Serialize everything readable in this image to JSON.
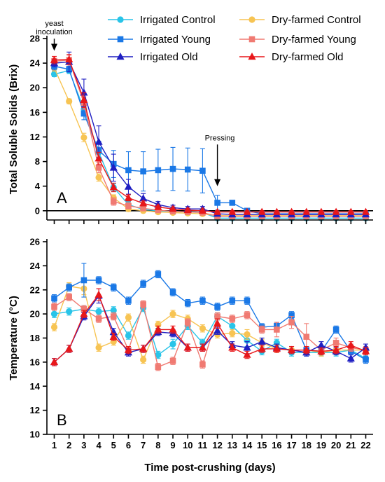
{
  "chart_data": {
    "type": "line",
    "x": [
      1,
      2,
      3,
      4,
      5,
      6,
      7,
      8,
      9,
      10,
      11,
      12,
      13,
      14,
      15,
      16,
      17,
      18,
      19,
      20,
      21,
      22
    ],
    "xlabel": "Time post-crushing (days)",
    "legend_position": "top-right",
    "series_style": [
      {
        "name": "Irrigated Control",
        "color": "#29c4e8",
        "marker": "circle"
      },
      {
        "name": "Dry-farmed Control",
        "color": "#f7c453",
        "marker": "circle"
      },
      {
        "name": "Irrigated Young",
        "color": "#1a78e6",
        "marker": "square"
      },
      {
        "name": "Dry-farmed Young",
        "color": "#f07a72",
        "marker": "square"
      },
      {
        "name": "Irrigated Old",
        "color": "#1f1fc2",
        "marker": "triangle"
      },
      {
        "name": "Dry-farmed Old",
        "color": "#e8171a",
        "marker": "triangle"
      }
    ],
    "panels": [
      {
        "letter": "A",
        "ylabel": "Total Soluble Solids (Brix)",
        "ylim": [
          -1.5,
          28
        ],
        "yticks": [
          0,
          4,
          8,
          12,
          16,
          20,
          24,
          28
        ],
        "annotations": [
          {
            "text_lines": [
              "yeast",
              "inoculation"
            ],
            "x": 1,
            "y_from": 28.2,
            "y_to": 26.0
          },
          {
            "text_lines": [
              "Pressing"
            ],
            "x": 12,
            "y_from": 11.0,
            "y_to": 4.0
          }
        ],
        "series": [
          {
            "name": "Irrigated Control",
            "values": [
              22.2,
              22.8,
              16.5,
              9.5,
              3.8,
              1.0,
              0.2,
              0.0,
              -0.1,
              -0.2,
              -0.3,
              -1.2,
              -1.2,
              -1.2,
              -1.2,
              -1.2,
              -1.2,
              -1.2,
              -1.2,
              -1.2,
              -1.2,
              -1.2
            ],
            "errors": [
              0.4,
              0.5,
              0.8,
              0.8,
              0.6,
              0.5,
              0.3,
              0.3,
              0.3,
              0.3,
              0.3,
              0.2,
              0.2,
              0.2,
              0.2,
              0.2,
              0.2,
              0.2,
              0.2,
              0.2,
              0.2,
              0.2
            ]
          },
          {
            "name": "Dry-farmed Control",
            "values": [
              23.2,
              17.8,
              11.9,
              5.4,
              2.1,
              0.3,
              0.0,
              -0.2,
              -0.3,
              -0.4,
              -0.5,
              -0.8,
              -0.8,
              -0.8,
              -0.8,
              -0.8,
              -0.8,
              -0.8,
              -0.8,
              -0.8,
              -0.8,
              -0.8
            ],
            "errors": [
              0.5,
              0.4,
              0.7,
              0.6,
              0.5,
              0.4,
              0.3,
              0.3,
              0.3,
              0.3,
              0.3,
              0.2,
              0.2,
              0.2,
              0.2,
              0.2,
              0.2,
              0.2,
              0.2,
              0.2,
              0.2,
              0.2
            ]
          },
          {
            "name": "Irrigated Young",
            "values": [
              23.5,
              23.0,
              15.8,
              9.8,
              7.6,
              6.6,
              6.4,
              6.6,
              6.8,
              6.7,
              6.5,
              1.3,
              1.3,
              0.0,
              -0.5,
              -0.5,
              -0.5,
              -0.5,
              -0.5,
              -0.5,
              -0.5,
              -0.5
            ],
            "errors": [
              0.6,
              0.5,
              1.0,
              1.5,
              2.2,
              3.0,
              3.2,
              3.4,
              3.5,
              3.5,
              3.6,
              1.2,
              0.3,
              0.3,
              0.2,
              0.2,
              0.2,
              0.2,
              0.2,
              0.2,
              0.2,
              0.2
            ]
          },
          {
            "name": "Dry-farmed Young",
            "values": [
              24.3,
              24.5,
              17.5,
              7.0,
              1.5,
              0.8,
              0.4,
              0.1,
              -0.1,
              -0.2,
              -0.3,
              -0.9,
              -0.9,
              -0.9,
              -0.9,
              -0.9,
              -0.9,
              -0.9,
              -0.9,
              -0.9,
              -0.9,
              -0.9
            ],
            "errors": [
              0.5,
              0.8,
              1.0,
              0.8,
              0.6,
              0.5,
              0.4,
              0.3,
              0.3,
              0.3,
              0.3,
              0.2,
              0.2,
              0.2,
              0.2,
              0.2,
              0.2,
              0.2,
              0.2,
              0.2,
              0.2,
              0.2
            ]
          },
          {
            "name": "Irrigated Old",
            "values": [
              24.0,
              24.2,
              19.2,
              11.2,
              7.0,
              3.9,
              2.0,
              1.0,
              0.5,
              0.3,
              0.3,
              -0.5,
              -0.6,
              -0.6,
              -0.6,
              -0.6,
              -0.6,
              -0.6,
              -0.6,
              -0.6,
              -0.6,
              -0.6
            ],
            "errors": [
              0.6,
              1.6,
              2.2,
              2.6,
              2.2,
              1.2,
              0.8,
              0.5,
              0.4,
              0.4,
              0.4,
              0.2,
              0.2,
              0.2,
              0.2,
              0.2,
              0.2,
              0.2,
              0.2,
              0.2,
              0.2,
              0.2
            ]
          },
          {
            "name": "Dry-farmed Old",
            "values": [
              24.5,
              24.6,
              18.0,
              8.5,
              3.8,
              2.1,
              1.2,
              0.6,
              0.3,
              0.1,
              0.0,
              -0.2,
              -0.2,
              -0.2,
              -0.2,
              -0.2,
              -0.2,
              -0.2,
              -0.2,
              -0.2,
              -0.2,
              -0.2
            ],
            "errors": [
              0.6,
              0.8,
              1.2,
              1.0,
              0.7,
              0.5,
              0.4,
              0.3,
              0.3,
              0.3,
              0.3,
              0.2,
              0.2,
              0.2,
              0.2,
              0.2,
              0.2,
              0.2,
              0.2,
              0.2,
              0.2,
              0.2
            ]
          }
        ]
      },
      {
        "letter": "B",
        "ylabel": "Temperature (°C)",
        "ylim": [
          10,
          26
        ],
        "yticks": [
          10,
          12,
          14,
          16,
          18,
          20,
          22,
          24,
          26
        ],
        "series": [
          {
            "name": "Irrigated Control",
            "values": [
              20.0,
              20.2,
              20.4,
              20.2,
              20.3,
              18.2,
              20.5,
              16.6,
              17.5,
              19.0,
              17.6,
              19.8,
              19.0,
              17.8,
              16.9,
              17.6,
              16.8,
              16.8,
              16.8,
              16.8,
              17.0,
              16.3
            ],
            "errors": [
              0.3,
              0.3,
              0.3,
              0.3,
              0.3,
              0.3,
              0.3,
              0.3,
              0.4,
              0.3,
              0.3,
              0.3,
              0.6,
              0.5,
              0.3,
              0.3,
              0.3,
              0.3,
              0.3,
              0.3,
              0.3,
              0.3
            ]
          },
          {
            "name": "Dry-farmed Control",
            "values": [
              18.9,
              22.3,
              22.1,
              17.2,
              17.7,
              19.7,
              16.2,
              19.1,
              20.0,
              19.6,
              18.8,
              18.3,
              18.4,
              18.3,
              17.6,
              17.1,
              17.0,
              17.0,
              16.8,
              17.0,
              17.0,
              17.0
            ],
            "errors": [
              0.3,
              0.3,
              0.5,
              0.3,
              0.3,
              0.3,
              0.3,
              0.3,
              0.3,
              0.3,
              0.3,
              0.3,
              0.3,
              0.4,
              0.3,
              0.3,
              0.3,
              0.3,
              0.3,
              0.3,
              0.3,
              0.3
            ]
          },
          {
            "name": "Irrigated Young",
            "values": [
              21.3,
              22.2,
              22.8,
              22.8,
              22.2,
              21.1,
              22.5,
              23.3,
              21.8,
              20.9,
              21.1,
              20.6,
              21.1,
              21.1,
              18.9,
              19.0,
              19.9,
              17.0,
              16.9,
              18.7,
              16.9,
              16.2
            ],
            "errors": [
              0.3,
              0.3,
              1.4,
              0.3,
              0.3,
              0.3,
              0.3,
              0.3,
              0.3,
              0.3,
              0.3,
              0.3,
              0.3,
              0.3,
              0.3,
              0.3,
              0.3,
              0.3,
              0.3,
              0.3,
              0.3,
              0.3
            ]
          },
          {
            "name": "Dry-farmed Young",
            "values": [
              20.6,
              21.4,
              20.4,
              19.6,
              19.8,
              17.0,
              20.8,
              15.6,
              16.1,
              19.3,
              15.8,
              19.8,
              19.6,
              19.9,
              18.7,
              18.7,
              19.3,
              18.1,
              17.0,
              17.6,
              17.2,
              17.0
            ],
            "errors": [
              0.3,
              0.3,
              0.3,
              0.3,
              0.3,
              0.3,
              0.3,
              0.3,
              0.3,
              0.3,
              0.3,
              0.3,
              0.3,
              0.3,
              0.3,
              0.6,
              0.5,
              1.1,
              0.3,
              0.4,
              0.3,
              0.3
            ]
          },
          {
            "name": "Irrigated Old",
            "values": [
              16.0,
              17.1,
              19.8,
              21.5,
              18.5,
              16.8,
              17.1,
              18.5,
              18.4,
              17.2,
              17.2,
              18.6,
              17.4,
              17.2,
              17.7,
              17.2,
              17.0,
              16.8,
              17.4,
              16.9,
              16.3,
              17.2
            ],
            "errors": [
              0.3,
              0.3,
              0.3,
              0.6,
              0.3,
              0.3,
              0.3,
              0.3,
              0.3,
              0.3,
              0.3,
              0.3,
              0.3,
              0.5,
              0.3,
              0.3,
              0.3,
              0.3,
              0.3,
              0.3,
              0.3,
              0.3
            ]
          },
          {
            "name": "Dry-farmed Old",
            "values": [
              16.0,
              17.1,
              20.0,
              21.6,
              18.1,
              17.0,
              17.1,
              18.7,
              18.7,
              17.2,
              17.2,
              19.2,
              17.2,
              16.6,
              17.1,
              17.1,
              17.0,
              17.0,
              16.9,
              17.0,
              17.4,
              16.9
            ],
            "errors": [
              0.3,
              0.3,
              0.3,
              0.5,
              0.3,
              0.3,
              0.3,
              0.3,
              0.3,
              0.3,
              0.3,
              0.4,
              0.3,
              0.3,
              0.3,
              0.3,
              0.3,
              0.3,
              0.3,
              0.3,
              0.3,
              0.3
            ]
          }
        ]
      }
    ]
  }
}
